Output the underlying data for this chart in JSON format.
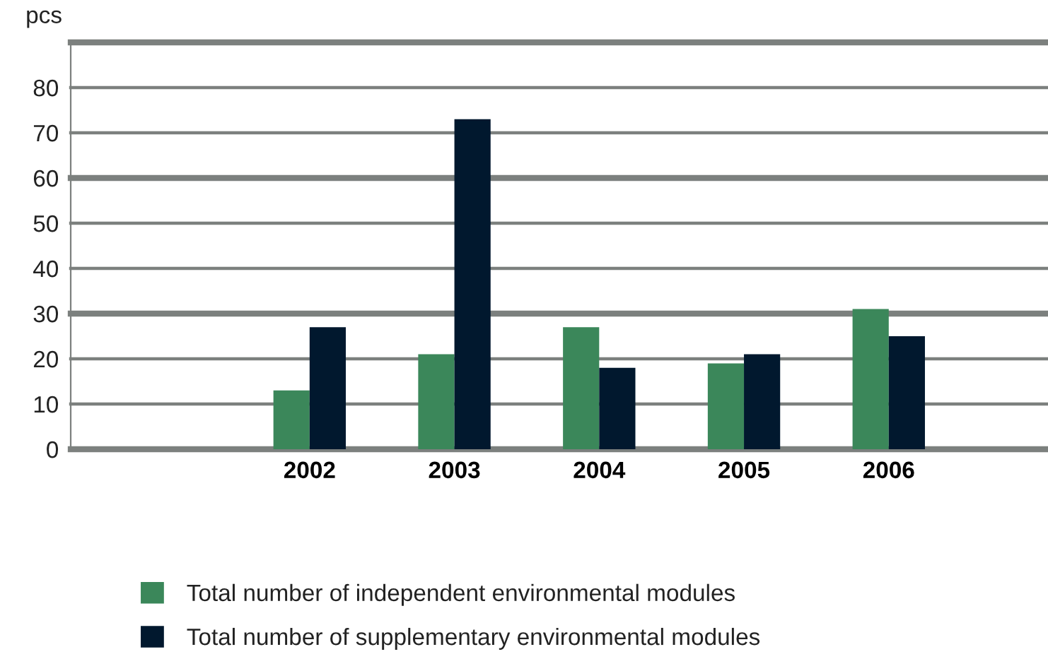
{
  "chart_data": {
    "type": "bar",
    "ylabel": "pcs",
    "categories": [
      null,
      "2002",
      "2003",
      "2004",
      "2005",
      "2006",
      null
    ],
    "series": [
      {
        "name": "Total number of independent environmental modules",
        "color": "#3b875a",
        "values": [
          null,
          13,
          21,
          27,
          19,
          31,
          null
        ]
      },
      {
        "name": "Total number of supplementary environmental modules",
        "color": "#01182e",
        "values": [
          null,
          27,
          73,
          18,
          21,
          25,
          null
        ]
      }
    ],
    "ylim": [
      0,
      90
    ],
    "yticks": [
      0,
      10,
      20,
      30,
      40,
      50,
      60,
      70,
      80,
      {
        "value": 90,
        "label": null
      }
    ],
    "grid": "y",
    "legend": "bottom"
  }
}
